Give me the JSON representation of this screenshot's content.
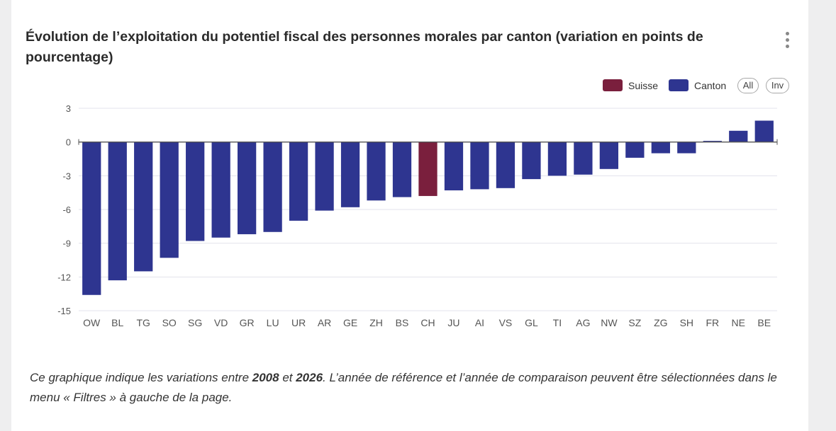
{
  "title": "Évolution de l’exploitation du potentiel fiscal des personnes morales par canton (variation en points de pourcentage)",
  "legend": {
    "suisse_label": "Suisse",
    "canton_label": "Canton",
    "all_label": "All",
    "inv_label": "Inv"
  },
  "colors": {
    "suisse": "#7a1f3d",
    "canton": "#2e3590"
  },
  "chart_data": {
    "type": "bar",
    "title": "Évolution de l’exploitation du potentiel fiscal des personnes morales par canton (variation en points de pourcentage)",
    "xlabel": "",
    "ylabel": "",
    "ylim": [
      -15,
      3
    ],
    "yticks": [
      3,
      0,
      -3,
      -6,
      -9,
      -12,
      -15
    ],
    "grid": true,
    "legend_position": "top-right",
    "categories": [
      "OW",
      "BL",
      "TG",
      "SO",
      "SG",
      "VD",
      "GR",
      "LU",
      "UR",
      "AR",
      "GE",
      "ZH",
      "BS",
      "CH",
      "JU",
      "AI",
      "VS",
      "GL",
      "TI",
      "AG",
      "NW",
      "SZ",
      "ZG",
      "SH",
      "FR",
      "NE",
      "BE"
    ],
    "values": [
      -13.6,
      -12.3,
      -11.5,
      -10.3,
      -8.8,
      -8.5,
      -8.2,
      -8.0,
      -7.0,
      -6.1,
      -5.8,
      -5.2,
      -4.9,
      -4.8,
      -4.3,
      -4.2,
      -4.1,
      -3.3,
      -3.0,
      -2.9,
      -2.4,
      -1.4,
      -1.0,
      -1.0,
      0.1,
      1.0,
      1.9
    ],
    "series_assignment": [
      "Canton",
      "Canton",
      "Canton",
      "Canton",
      "Canton",
      "Canton",
      "Canton",
      "Canton",
      "Canton",
      "Canton",
      "Canton",
      "Canton",
      "Canton",
      "Suisse",
      "Canton",
      "Canton",
      "Canton",
      "Canton",
      "Canton",
      "Canton",
      "Canton",
      "Canton",
      "Canton",
      "Canton",
      "Canton",
      "Canton",
      "Canton"
    ]
  },
  "footnote": {
    "part1": "Ce graphique indique les variations entre ",
    "year_from": "2008",
    "part2": " et ",
    "year_to": "2026",
    "part3": ". L’année de référence et l’année de comparaison peuvent être sélectionnées dans le menu « Filtres » à gauche de la page."
  }
}
